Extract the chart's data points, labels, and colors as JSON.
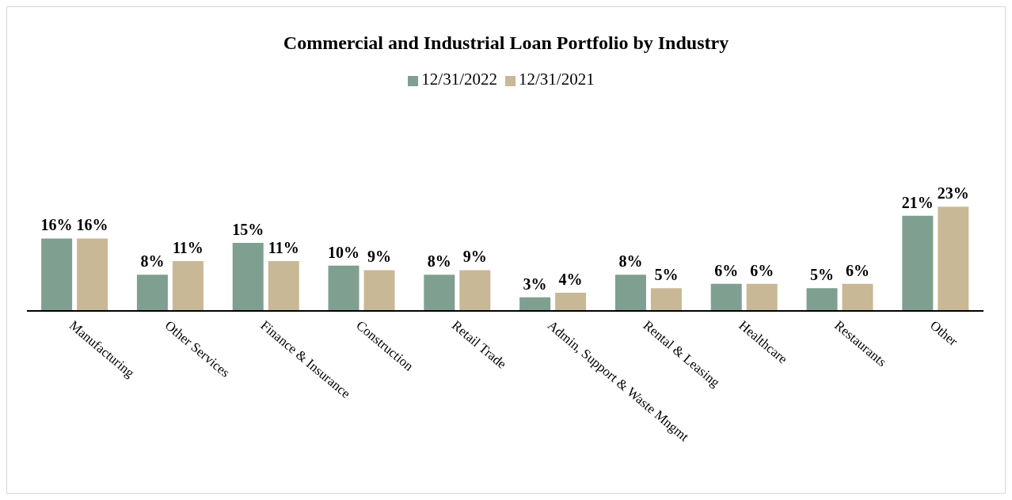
{
  "chart_data": {
    "type": "bar",
    "title": "Commercial and Industrial Loan Portfolio by Industry",
    "categories": [
      "Manufacturing",
      "Other Services",
      "Finance & Insurance",
      "Construction",
      "Retail Trade",
      "Admin, Support & Waste Mngmt",
      "Rental & Leasing",
      "Healthcare",
      "Restaurants",
      "Other"
    ],
    "series": [
      {
        "name": "12/31/2022",
        "color": "#7f9f91",
        "values": [
          16,
          8,
          15,
          10,
          8,
          3,
          8,
          6,
          5,
          21
        ],
        "value_labels": [
          "16%",
          "8%",
          "15%",
          "10%",
          "8%",
          "3%",
          "8%",
          "6%",
          "5%",
          "21%"
        ]
      },
      {
        "name": "12/31/2021",
        "color": "#c8b896",
        "values": [
          16,
          11,
          11,
          9,
          9,
          4,
          5,
          6,
          6,
          23
        ],
        "value_labels": [
          "16%",
          "11%",
          "11%",
          "9%",
          "9%",
          "4%",
          "5%",
          "6%",
          "6%",
          "23%"
        ]
      }
    ],
    "legend": "top",
    "grid": false
  }
}
